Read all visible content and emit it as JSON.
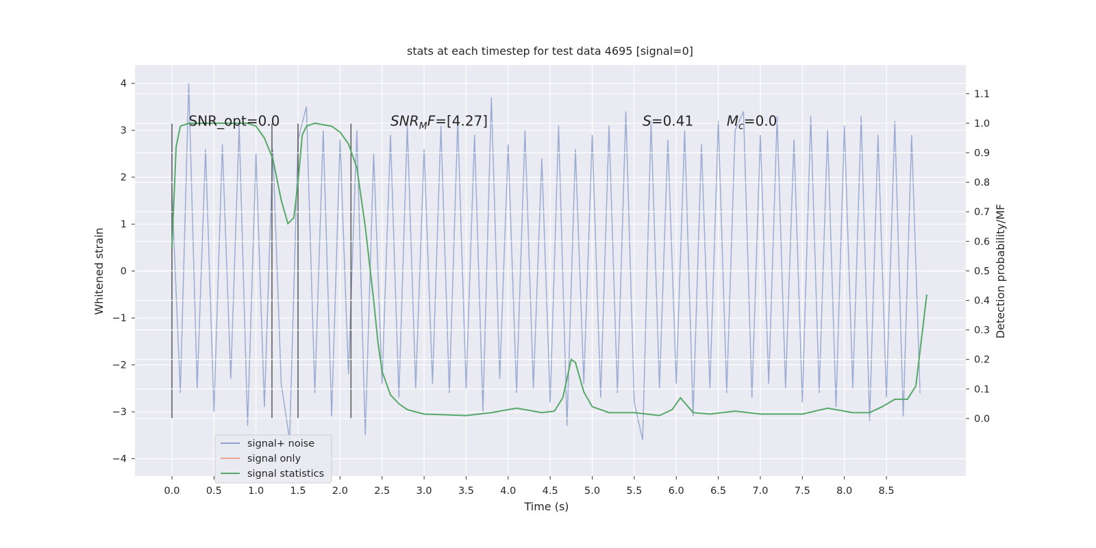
{
  "chart_data": {
    "type": "line",
    "title": "stats at each timestep for test data 4695 [signal=0]",
    "xlabel": "Time (s)",
    "ylabel": "Whitened strain",
    "y2label": "Detection probability/MF",
    "xlim": [
      -0.44,
      9.445
    ],
    "ylim": [
      -4.37,
      4.39
    ],
    "y2lim": [
      -0.195,
      1.197
    ],
    "xticks": [
      {
        "value": 0,
        "label": "0.0"
      },
      {
        "value": 0.5,
        "label": "0.5"
      },
      {
        "value": 1,
        "label": "1.0"
      },
      {
        "value": 1.5,
        "label": "1.5"
      },
      {
        "value": 2,
        "label": "2.0"
      },
      {
        "value": 2.5,
        "label": "2.5"
      },
      {
        "value": 3,
        "label": "3.0"
      },
      {
        "value": 3.5,
        "label": "3.5"
      },
      {
        "value": 4,
        "label": "4.0"
      },
      {
        "value": 4.5,
        "label": "4.5"
      },
      {
        "value": 5,
        "label": "5.0"
      },
      {
        "value": 5.5,
        "label": "5.5"
      },
      {
        "value": 6,
        "label": "6.0"
      },
      {
        "value": 6.5,
        "label": "6.5"
      },
      {
        "value": 7,
        "label": "7.0"
      },
      {
        "value": 7.5,
        "label": "7.5"
      },
      {
        "value": 8,
        "label": "8.0"
      },
      {
        "value": 8.5,
        "label": "8.5"
      }
    ],
    "yticks": [
      {
        "value": -4,
        "label": "−4"
      },
      {
        "value": -3,
        "label": "−3"
      },
      {
        "value": -2,
        "label": "−2"
      },
      {
        "value": -1,
        "label": "−1"
      },
      0,
      1,
      2,
      3,
      4
    ],
    "y2ticks": [
      {
        "value": 0,
        "label": "0.0"
      },
      {
        "value": 0.1,
        "label": "0.1"
      },
      {
        "value": 0.2,
        "label": "0.2"
      },
      {
        "value": 0.3,
        "label": "0.3"
      },
      {
        "value": 0.4,
        "label": "0.4"
      },
      {
        "value": 0.5,
        "label": "0.5"
      },
      {
        "value": 0.6,
        "label": "0.6"
      },
      {
        "value": 0.7,
        "label": "0.7"
      },
      {
        "value": 0.8,
        "label": "0.8"
      },
      {
        "value": 0.9,
        "label": "0.9"
      },
      {
        "value": 1,
        "label": "1.0"
      },
      {
        "value": 1.1,
        "label": "1.1"
      }
    ],
    "grid": true,
    "legend": "lower left",
    "series": [
      {
        "name": "signal+ noise",
        "color": "#8da0cb",
        "opacity": 0.85,
        "x": [
          0,
          0.1,
          0.2,
          0.3,
          0.4,
          0.5,
          0.6,
          0.7,
          0.8,
          0.9,
          1,
          1.1,
          1.2,
          1.3,
          1.4,
          1.5,
          1.6,
          1.7,
          1.8,
          1.9,
          2,
          2.1,
          2.2,
          2.3,
          2.4,
          2.5,
          2.6,
          2.7,
          2.8,
          2.9,
          3,
          3.1,
          3.2,
          3.3,
          3.4,
          3.5,
          3.6,
          3.7,
          3.8,
          3.9,
          4,
          4.1,
          4.2,
          4.3,
          4.4,
          4.5,
          4.6,
          4.7,
          4.8,
          4.9,
          5,
          5.1,
          5.2,
          5.3,
          5.4,
          5.5,
          5.6,
          5.7,
          5.8,
          5.9,
          6,
          6.1,
          6.2,
          6.3,
          6.4,
          6.5,
          6.6,
          6.7,
          6.8,
          6.9,
          7,
          7.1,
          7.2,
          7.3,
          7.4,
          7.5,
          7.6,
          7.7,
          7.8,
          7.9,
          8,
          8.1,
          8.2,
          8.3,
          8.4,
          8.5,
          8.6,
          8.7,
          8.8,
          8.9
        ],
        "values": [
          1.7,
          -2.6,
          4.0,
          -2.5,
          2.6,
          -3.0,
          2.7,
          -2.3,
          3.1,
          -3.3,
          2.5,
          -2.9,
          2.6,
          -2.4,
          -3.6,
          2.8,
          3.5,
          -2.6,
          3.0,
          -3.1,
          2.8,
          -2.2,
          3.0,
          -3.5,
          2.5,
          -2.4,
          2.9,
          -2.7,
          3.1,
          -2.5,
          2.6,
          -2.4,
          3.1,
          -2.6,
          3.2,
          -2.5,
          2.9,
          -3.0,
          3.7,
          -2.3,
          2.7,
          -2.6,
          3.0,
          -2.5,
          2.4,
          -2.8,
          3.1,
          -3.3,
          2.6,
          -2.4,
          2.9,
          -2.7,
          3.1,
          -2.6,
          3.4,
          -2.8,
          -3.6,
          3.2,
          -2.5,
          2.8,
          -2.4,
          3.0,
          -3.1,
          2.7,
          -2.5,
          3.2,
          -2.6,
          3.0,
          3.4,
          -2.7,
          2.9,
          -2.4,
          3.3,
          -2.5,
          2.8,
          -2.8,
          3.3,
          -2.6,
          3.0,
          -2.9,
          3.1,
          -2.5,
          3.3,
          -3.2,
          2.9,
          -2.7,
          3.2,
          -3.1,
          2.9,
          -2.6
        ]
      },
      {
        "name": "signal only",
        "color": "#e8a58a",
        "x": [
          0,
          8.99
        ],
        "values": [
          null,
          null
        ]
      },
      {
        "name": "signal statistics",
        "color": "#55a868",
        "axis": "y2",
        "x": [
          0,
          0.05,
          0.1,
          0.2,
          0.5,
          0.9,
          1,
          1.1,
          1.2,
          1.3,
          1.38,
          1.45,
          1.5,
          1.55,
          1.6,
          1.7,
          1.9,
          2,
          2.1,
          2.2,
          2.3,
          2.4,
          2.45,
          2.5,
          2.6,
          2.7,
          2.8,
          3,
          3.5,
          3.8,
          4.1,
          4.4,
          4.55,
          4.65,
          4.75,
          4.8,
          4.9,
          5,
          5.2,
          5.5,
          5.8,
          5.95,
          6.05,
          6.2,
          6.4,
          6.7,
          7,
          7.5,
          7.8,
          8.1,
          8.3,
          8.45,
          8.6,
          8.75,
          8.85,
          8.93,
          8.98
        ],
        "values": [
          0.58,
          0.92,
          0.99,
          1.0,
          1.0,
          1.0,
          0.99,
          0.95,
          0.88,
          0.74,
          0.66,
          0.68,
          0.8,
          0.96,
          0.99,
          1.0,
          0.99,
          0.97,
          0.93,
          0.85,
          0.65,
          0.4,
          0.26,
          0.16,
          0.08,
          0.05,
          0.03,
          0.015,
          0.01,
          0.02,
          0.035,
          0.02,
          0.025,
          0.07,
          0.2,
          0.19,
          0.09,
          0.04,
          0.02,
          0.02,
          0.01,
          0.03,
          0.07,
          0.02,
          0.015,
          0.025,
          0.015,
          0.015,
          0.035,
          0.02,
          0.02,
          0.04,
          0.065,
          0.065,
          0.11,
          0.3,
          0.42
        ]
      }
    ],
    "vlines": {
      "x": [
        0,
        1.19,
        1.5,
        2.13
      ],
      "ymin": -3.15,
      "ymax": 3.15,
      "color": "#555555"
    },
    "annotations": [
      {
        "x": 0.2,
        "y": 3.2,
        "parts": [
          {
            "text": "SNR_opt=0.0"
          }
        ]
      },
      {
        "x": 2.6,
        "y": 3.2,
        "parts": [
          {
            "text": "SNR",
            "italic": true
          },
          {
            "text": "M",
            "italic": true,
            "sub": true
          },
          {
            "text": "F",
            "italic": true
          },
          {
            "text": "=[4.27]"
          }
        ]
      },
      {
        "x": 5.6,
        "y": 3.2,
        "parts": [
          {
            "text": "S",
            "italic": true
          },
          {
            "text": "=0.41"
          }
        ]
      },
      {
        "x": 6.6,
        "y": 3.2,
        "parts": [
          {
            "text": "M",
            "italic": true
          },
          {
            "text": "c",
            "italic": true,
            "sub": true
          },
          {
            "text": "=0.0"
          }
        ]
      }
    ]
  }
}
